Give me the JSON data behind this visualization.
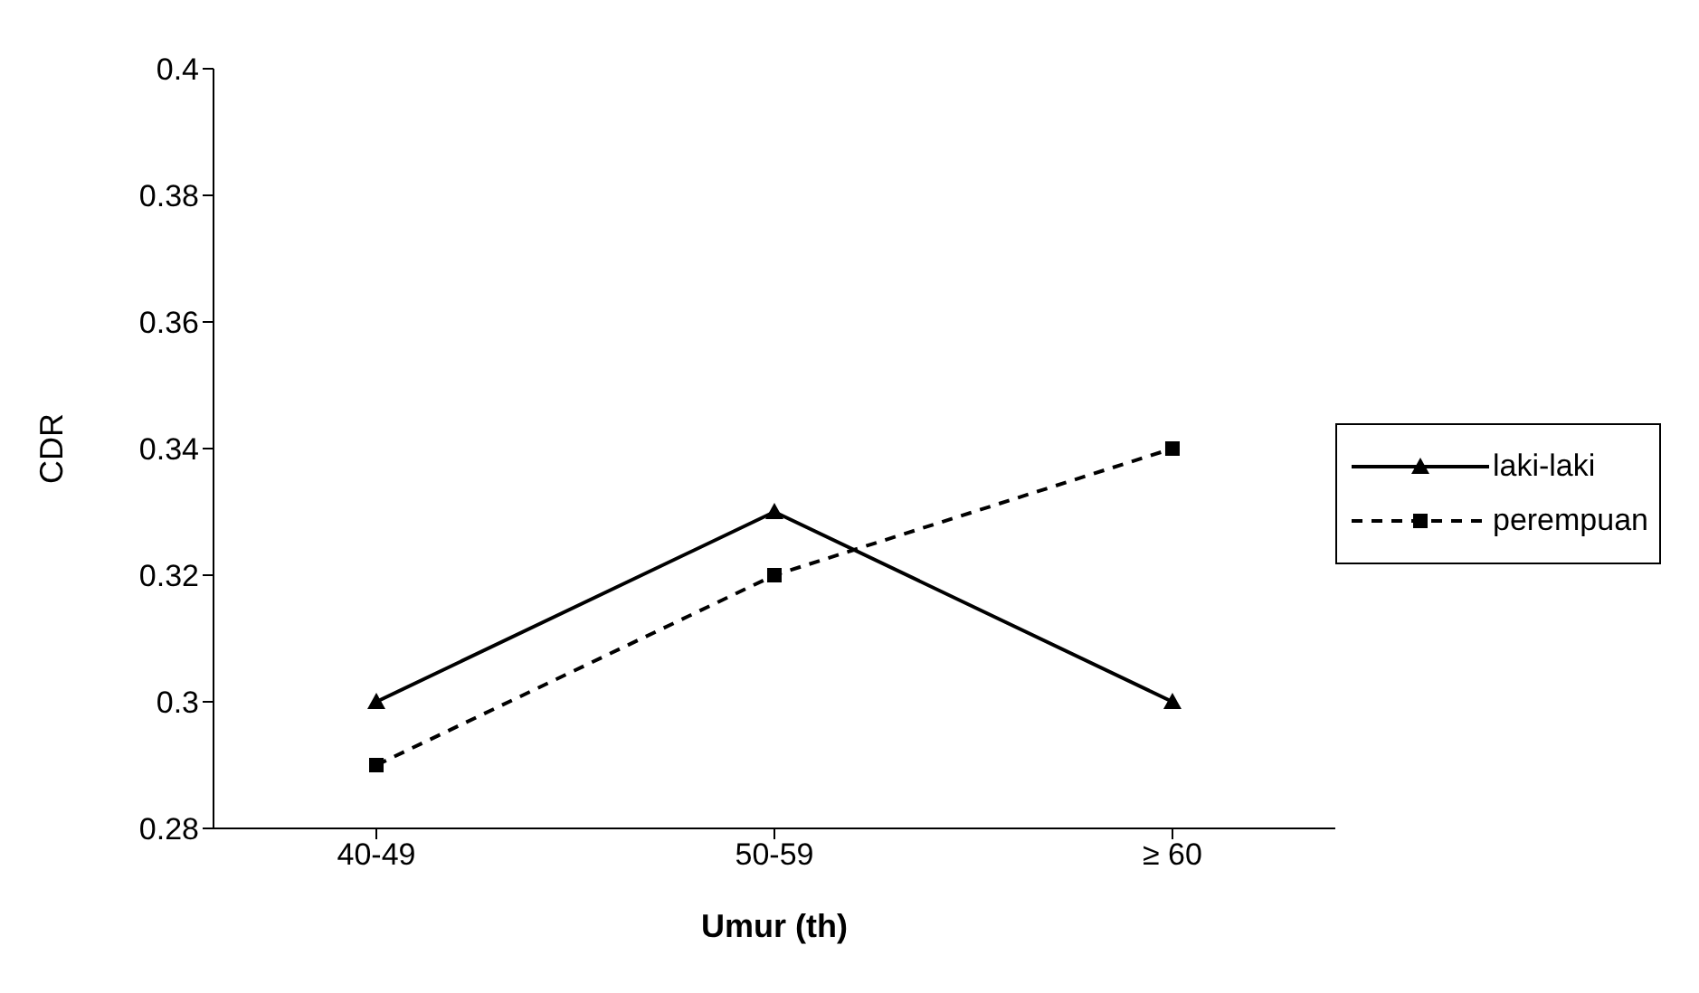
{
  "chart_data": {
    "type": "line",
    "xlabel": "Umur (th)",
    "ylabel": "CDR",
    "categories": [
      "40-49",
      "50-59",
      "≥ 60"
    ],
    "series": [
      {
        "name": "laki-laki",
        "color": "#000000",
        "values": [
          0.3,
          0.33,
          0.3
        ],
        "marker": "triangle",
        "line_style": "solid"
      },
      {
        "name": "perempuan",
        "color": "#000000",
        "values": [
          0.29,
          0.32,
          0.34
        ],
        "marker": "square",
        "line_style": "dashed"
      }
    ],
    "ylim": [
      0.28,
      0.4
    ],
    "yticks": [
      0.28,
      0.3,
      0.32,
      0.34,
      0.36,
      0.38,
      0.4
    ],
    "grid": false,
    "legend": "right"
  }
}
